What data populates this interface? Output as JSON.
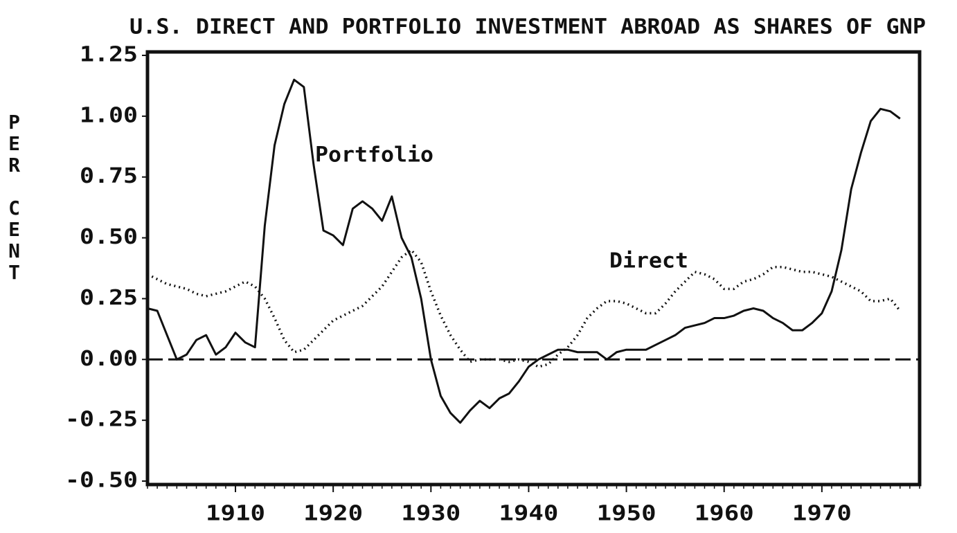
{
  "chart_data": {
    "type": "line",
    "title": "U.S. DIRECT AND PORTFOLIO INVESTMENT ABROAD AS SHARES OF GNP",
    "ylabel": "PER CENT",
    "xlim": [
      1901,
      1980
    ],
    "ylim": [
      -0.5,
      1.25
    ],
    "xticks": [
      1910,
      1920,
      1930,
      1940,
      1950,
      1960,
      1970
    ],
    "yticks": [
      {
        "value": 1.25,
        "label": "1.25"
      },
      {
        "value": 1.0,
        "label": "1.00"
      },
      {
        "value": 0.75,
        "label": "0.75"
      },
      {
        "value": 0.5,
        "label": "0.50"
      },
      {
        "value": 0.25,
        "label": "0.25"
      },
      {
        "value": 0,
        "label": "0.00"
      },
      {
        "value": -0.25,
        "label": "-0.25"
      },
      {
        "value": -0.5,
        "label": "-0.50"
      }
    ],
    "x": [
      1901,
      1902,
      1903,
      1904,
      1905,
      1906,
      1907,
      1908,
      1909,
      1910,
      1911,
      1912,
      1913,
      1914,
      1915,
      1916,
      1917,
      1918,
      1919,
      1920,
      1921,
      1922,
      1923,
      1924,
      1925,
      1926,
      1927,
      1928,
      1929,
      1930,
      1931,
      1932,
      1933,
      1934,
      1935,
      1936,
      1937,
      1938,
      1939,
      1940,
      1941,
      1942,
      1943,
      1944,
      1945,
      1946,
      1947,
      1948,
      1949,
      1950,
      1951,
      1952,
      1953,
      1954,
      1955,
      1956,
      1957,
      1958,
      1959,
      1960,
      1961,
      1962,
      1963,
      1964,
      1965,
      1966,
      1967,
      1968,
      1969,
      1970,
      1971,
      1972,
      1973,
      1974,
      1975,
      1976,
      1977,
      1978
    ],
    "series": [
      {
        "name": "Portfolio",
        "color": "#111111",
        "style": "solid",
        "values": [
          0.21,
          0.2,
          0.1,
          0.0,
          0.02,
          0.08,
          0.1,
          0.02,
          0.05,
          0.11,
          0.07,
          0.05,
          0.55,
          0.88,
          1.05,
          1.15,
          1.12,
          0.8,
          0.53,
          0.51,
          0.47,
          0.62,
          0.65,
          0.62,
          0.57,
          0.67,
          0.5,
          0.42,
          0.25,
          0.0,
          -0.15,
          -0.22,
          -0.26,
          -0.21,
          -0.17,
          -0.2,
          -0.16,
          -0.14,
          -0.09,
          -0.03,
          0.0,
          0.02,
          0.04,
          0.04,
          0.03,
          0.03,
          0.03,
          0.0,
          0.03,
          0.04,
          0.04,
          0.04,
          0.06,
          0.08,
          0.1,
          0.13,
          0.14,
          0.15,
          0.17,
          0.17,
          0.18,
          0.2,
          0.21,
          0.2,
          0.17,
          0.15,
          0.12,
          0.12,
          0.15,
          0.19,
          0.28,
          0.45,
          0.7,
          0.85,
          0.98,
          1.03,
          1.02,
          0.99
        ]
      },
      {
        "name": "Direct",
        "color": "#111111",
        "style": "dotted",
        "values": [
          0.35,
          0.33,
          0.31,
          0.3,
          0.29,
          0.27,
          0.26,
          0.27,
          0.28,
          0.3,
          0.32,
          0.3,
          0.25,
          0.17,
          0.08,
          0.03,
          0.04,
          0.08,
          0.12,
          0.16,
          0.18,
          0.2,
          0.22,
          0.26,
          0.3,
          0.36,
          0.42,
          0.45,
          0.4,
          0.28,
          0.18,
          0.1,
          0.04,
          -0.01,
          0.0,
          0.0,
          0.0,
          -0.01,
          0.0,
          -0.01,
          -0.03,
          -0.02,
          0.02,
          0.05,
          0.1,
          0.17,
          0.21,
          0.24,
          0.24,
          0.23,
          0.21,
          0.19,
          0.19,
          0.23,
          0.28,
          0.32,
          0.36,
          0.35,
          0.33,
          0.29,
          0.29,
          0.32,
          0.33,
          0.35,
          0.38,
          0.38,
          0.37,
          0.36,
          0.36,
          0.35,
          0.34,
          0.32,
          0.3,
          0.28,
          0.24,
          0.24,
          0.25,
          0.2
        ]
      }
    ]
  }
}
